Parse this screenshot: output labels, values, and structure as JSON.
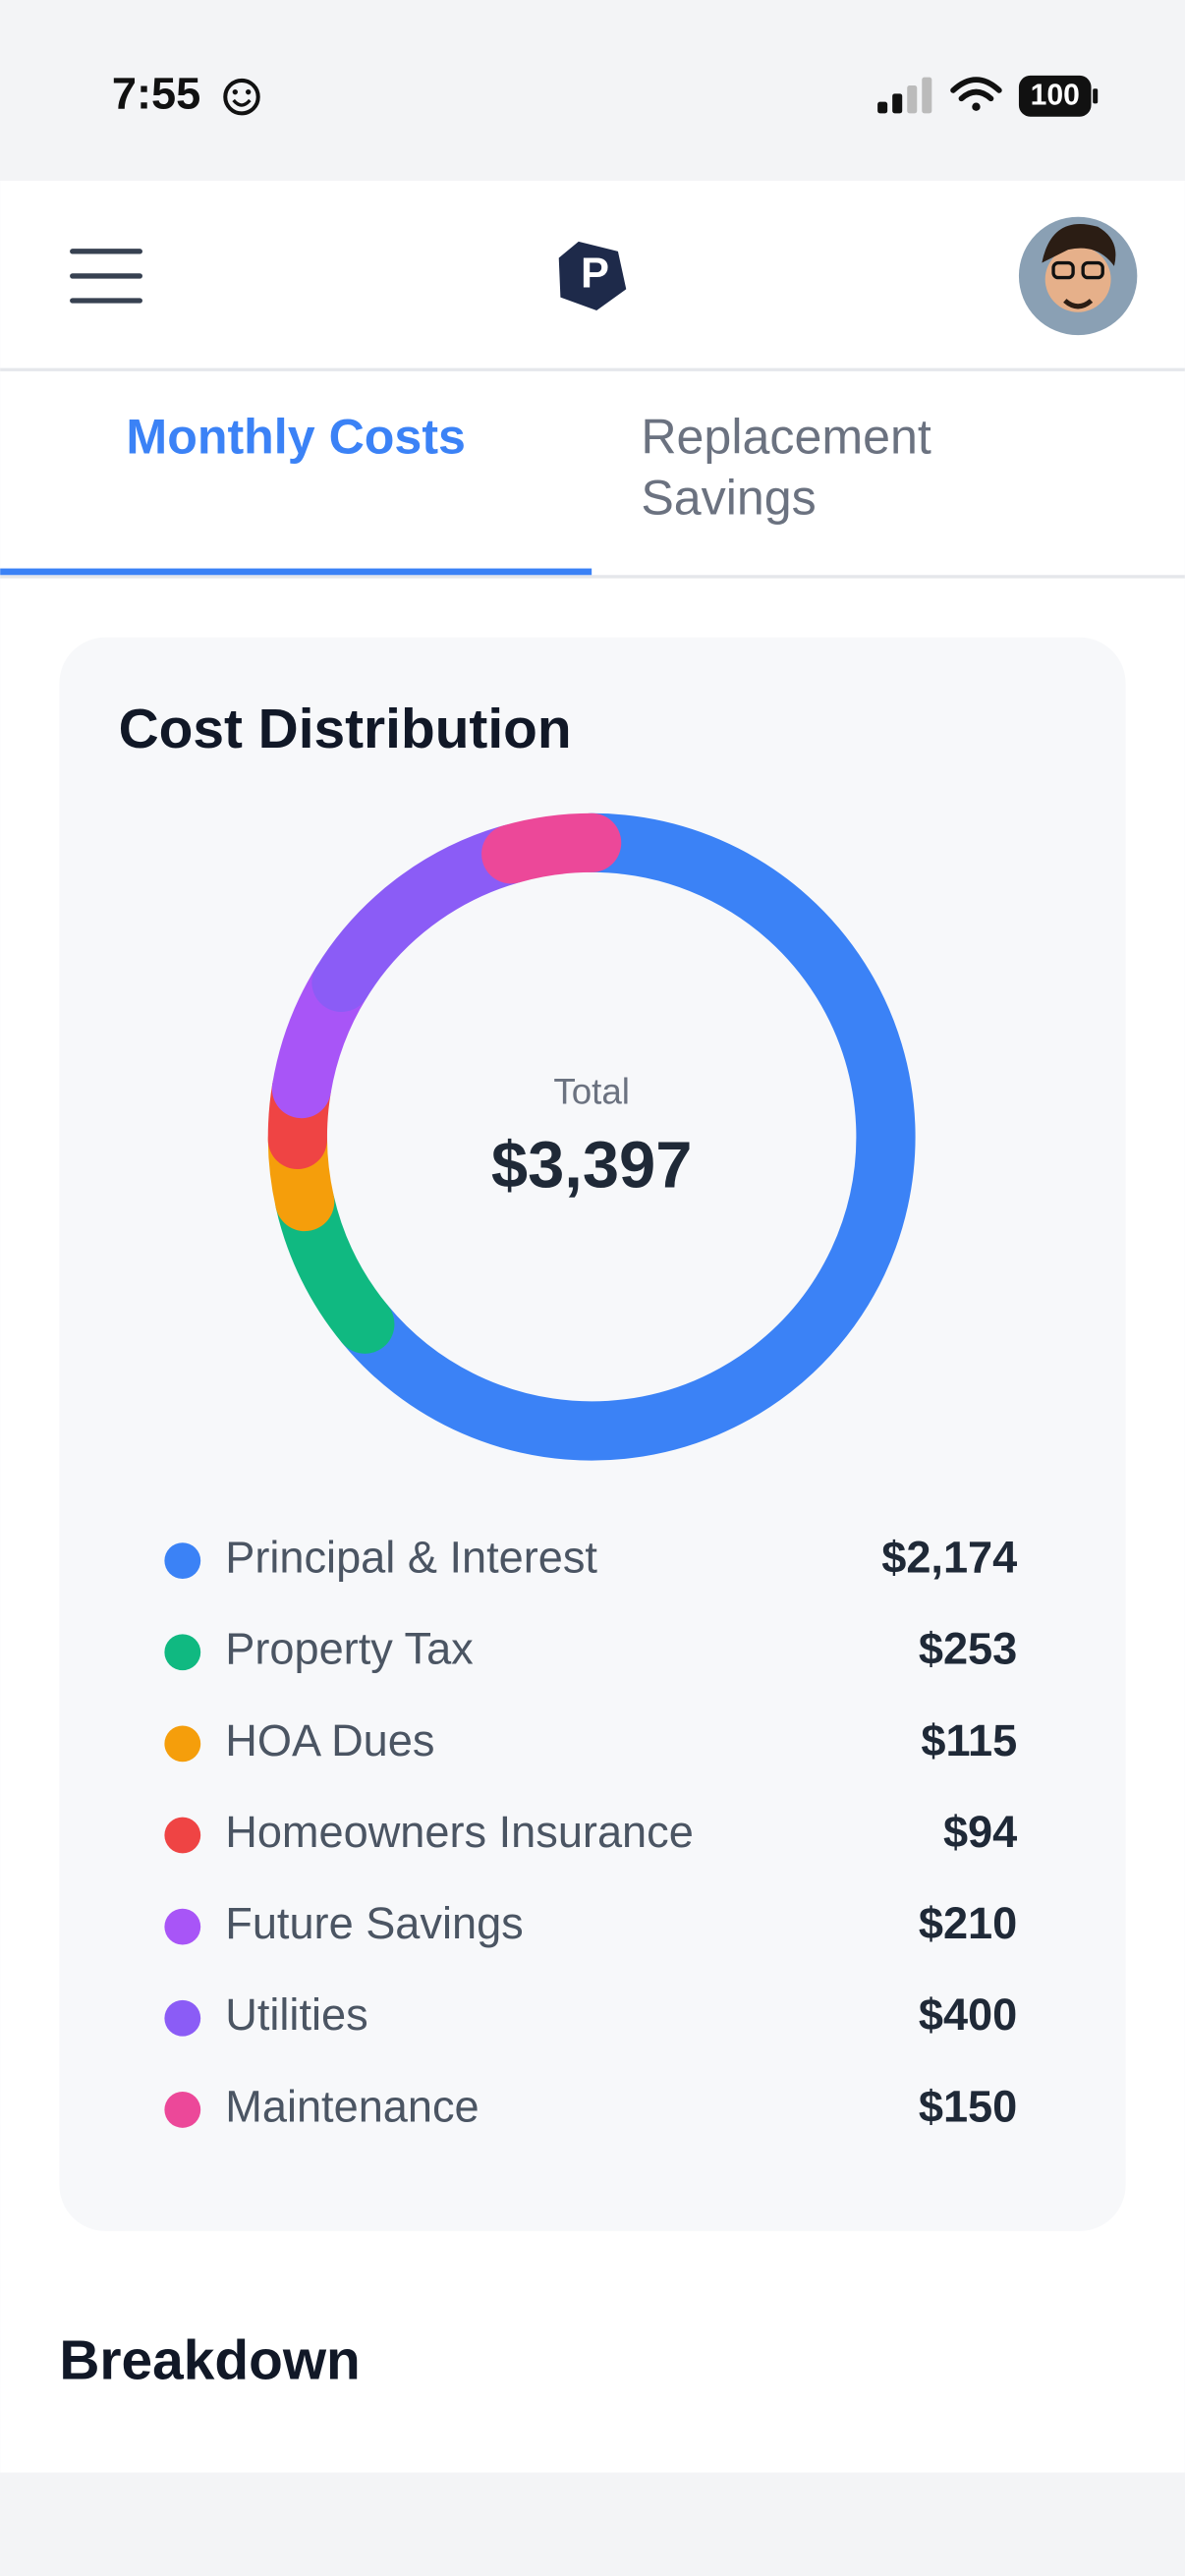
{
  "status_bar": {
    "time": "7:55",
    "battery": "100"
  },
  "tabs": [
    {
      "label": "Monthly Costs"
    },
    {
      "label_lines": [
        "Replacement",
        "Savings"
      ]
    }
  ],
  "chart_data": {
    "type": "donut",
    "title": "Cost Distribution",
    "center_label": "Total",
    "center_value": "$3,397",
    "categories": [
      "Principal & Interest",
      "Property Tax",
      "HOA Dues",
      "Homeowners Insurance",
      "Future Savings",
      "Utilities",
      "Maintenance"
    ],
    "values": [
      2174,
      253,
      115,
      94,
      210,
      400,
      150
    ],
    "value_labels": [
      "$2,174",
      "$253",
      "$115",
      "$94",
      "$210",
      "$400",
      "$150"
    ],
    "colors": [
      "#3b82f6",
      "#10b981",
      "#f59e0b",
      "#ef4444",
      "#a855f7",
      "#8b5cf6",
      "#ec4899"
    ]
  },
  "section": {
    "title": "Breakdown"
  }
}
